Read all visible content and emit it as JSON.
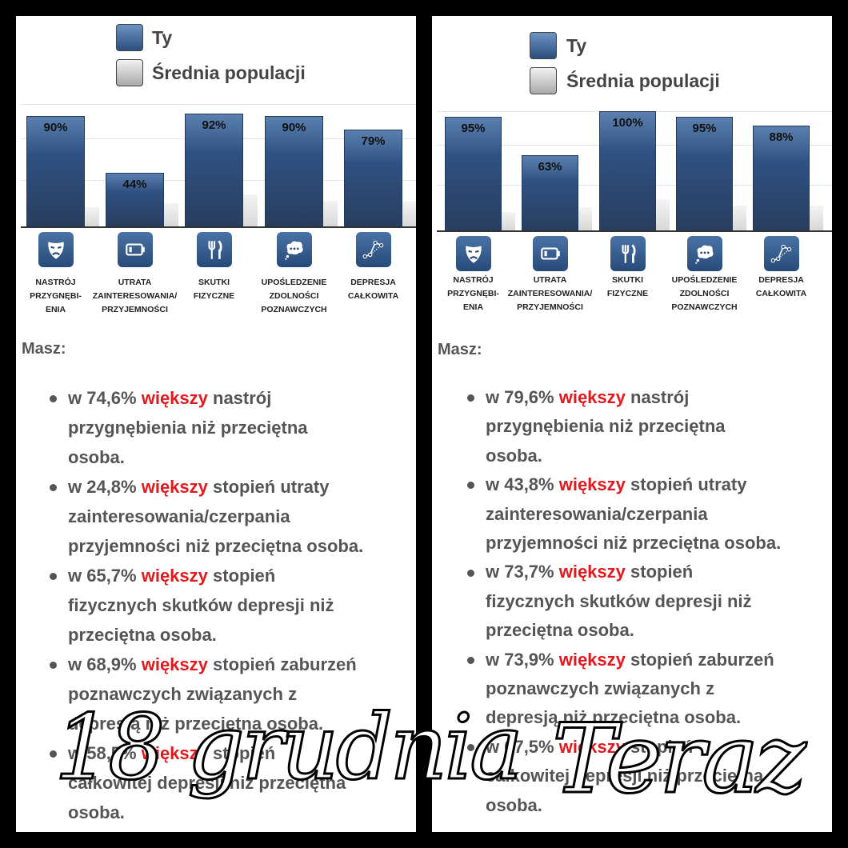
{
  "colors": {
    "you": "#2f5182",
    "average": "#d8d8d8",
    "highlight": "#e01b1f",
    "text": "#555555"
  },
  "overlays": {
    "left": "18 grudnia",
    "right": "Teraz"
  },
  "panels": [
    {
      "legend": {
        "you": "Ty",
        "average": "Średnia populacji"
      },
      "masz_label": "Masz:",
      "items": [
        {
          "prefix": "w 74,6% ",
          "highlight": "większy",
          "lines": [
            " nastrój",
            "przygnębienia niż przeciętna",
            "osoba."
          ]
        },
        {
          "prefix": "w 24,8% ",
          "highlight": "większy",
          "lines": [
            " stopień utraty",
            "zainteresowania/czerpania",
            "przyjemności niż przeciętna osoba."
          ]
        },
        {
          "prefix": "w 65,7% ",
          "highlight": "większy",
          "lines": [
            " stopień",
            "fizycznych skutków depresji niż",
            "przeciętna osoba."
          ]
        },
        {
          "prefix": "w 68,9% ",
          "highlight": "większy",
          "lines": [
            " stopień zaburzeń",
            "poznawczych związanych z",
            "depresją niż przeciętna osoba."
          ]
        },
        {
          "prefix": "w 58,5% ",
          "highlight": "większy",
          "lines": [
            " stopień",
            "całkowitej depresji niż przeciętna",
            "osoba."
          ]
        }
      ]
    },
    {
      "legend": {
        "you": "Ty",
        "average": "Średnia populacji"
      },
      "masz_label": "Masz:",
      "items": [
        {
          "prefix": "w 79,6% ",
          "highlight": "większy",
          "lines": [
            " nastrój",
            "przygnębienia niż przeciętna",
            "osoba."
          ]
        },
        {
          "prefix": "w 43,8% ",
          "highlight": "większy",
          "lines": [
            " stopień utraty",
            "zainteresowania/czerpania",
            "przyjemności niż przeciętna osoba."
          ]
        },
        {
          "prefix": "w 73,7% ",
          "highlight": "większy",
          "lines": [
            " stopień",
            "fizycznych skutków depresji niż",
            "przeciętna osoba."
          ]
        },
        {
          "prefix": "w 73,9% ",
          "highlight": "większy",
          "lines": [
            " stopień zaburzeń",
            "poznawczych związanych z",
            "depresją niż przeciętna osoba."
          ]
        },
        {
          "prefix": "w 67,5% ",
          "highlight": "większy",
          "lines": [
            " stopień",
            "całkowitej depresji niż przeciętna",
            "osoba."
          ]
        }
      ]
    }
  ],
  "chart_data": [
    {
      "type": "bar",
      "title": "",
      "xlabel": "",
      "ylabel": "",
      "ylim": [
        0,
        100
      ],
      "grid": true,
      "legend": "top-center",
      "categories": [
        "NASTRÓJ PRZYGNĘBI-ENIA",
        "UTRATA ZAINTERESOWANIA/ PRZYJEMNOŚCI",
        "SKUTKI FIZYCZNE",
        "UPOŚLEDZENIE ZDOLNOŚCI POZNAWCZYCH",
        "DEPRESJA CAŁKOWITA"
      ],
      "category_lines": [
        [
          "NASTRÓJ",
          "PRZYGNĘBI-",
          "ENIA"
        ],
        [
          "UTRATA",
          "ZAINTERESOWANIA/",
          "PRZYJEMNOŚCI"
        ],
        [
          "SKUTKI",
          "FIZYCZNE"
        ],
        [
          "UPOŚLEDZENIE",
          "ZDOLNOŚCI",
          "POZNAWCZYCH"
        ],
        [
          "DEPRESJA",
          "CAŁKOWITA"
        ]
      ],
      "category_icons": [
        "tragedy-mask-icon",
        "low-battery-icon",
        "fork-knife-icon",
        "thought-bubble-icon",
        "line-graph-icon"
      ],
      "series": [
        {
          "name": "Ty",
          "values": [
            90,
            44,
            92,
            90,
            79
          ],
          "labels": [
            "90%",
            "44%",
            "92%",
            "90%",
            "79%"
          ]
        },
        {
          "name": "Średnia populacji",
          "values": [
            15.4,
            19.2,
            26.3,
            21.1,
            20.5
          ]
        }
      ]
    },
    {
      "type": "bar",
      "title": "",
      "xlabel": "",
      "ylabel": "",
      "ylim": [
        0,
        100
      ],
      "grid": true,
      "legend": "top-center",
      "categories": [
        "NASTRÓJ PRZYGNĘBI-ENIA",
        "UTRATA ZAINTERESOWANIA/ PRZYJEMNOŚCI",
        "SKUTKI FIZYCZNE",
        "UPOŚLEDZENIE ZDOLNOŚCI POZNAWCZYCH",
        "DEPRESJA CAŁKOWITA"
      ],
      "category_lines": [
        [
          "NASTRÓJ",
          "PRZYGNĘBI-",
          "ENIA"
        ],
        [
          "UTRATA",
          "ZAINTERESOWANIA/",
          "PRZYJEMNOŚCI"
        ],
        [
          "SKUTKI",
          "FIZYCZNE"
        ],
        [
          "UPOŚLEDZENIE",
          "ZDOLNOŚCI",
          "POZNAWCZYCH"
        ],
        [
          "DEPRESJA",
          "CAŁKOWITA"
        ]
      ],
      "category_icons": [
        "tragedy-mask-icon",
        "low-battery-icon",
        "fork-knife-icon",
        "thought-bubble-icon",
        "line-graph-icon"
      ],
      "series": [
        {
          "name": "Ty",
          "values": [
            95,
            63,
            100,
            95,
            88
          ],
          "labels": [
            "95%",
            "63%",
            "100%",
            "95%",
            "88%"
          ]
        },
        {
          "name": "Średnia populacji",
          "values": [
            15.4,
            19.2,
            26.3,
            21.1,
            20.5
          ]
        }
      ]
    }
  ]
}
